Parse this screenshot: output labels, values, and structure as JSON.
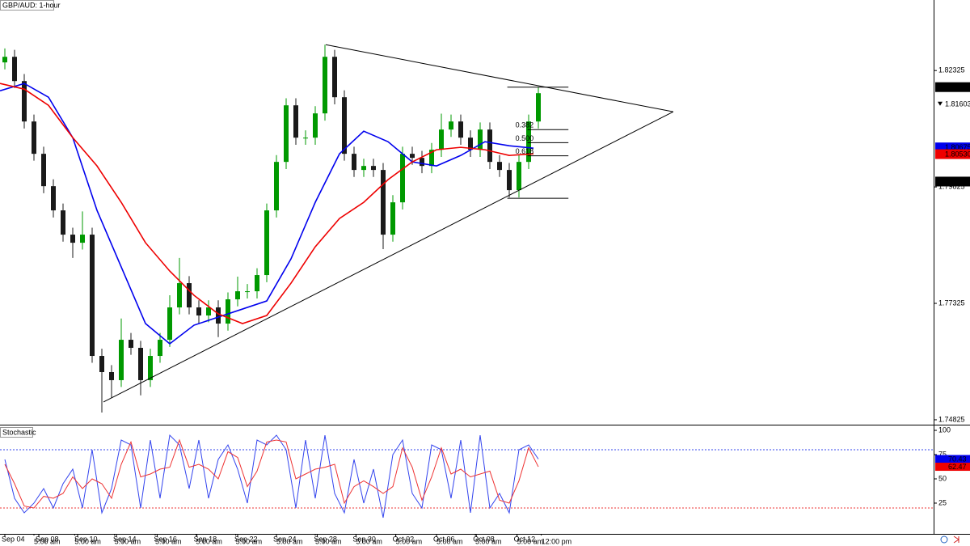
{
  "chart_data": [
    {
      "type": "candlestick",
      "title": "GBP/AUD: 1-hour",
      "open": [
        1.825,
        1.8262,
        1.82099,
        1.81231,
        1.80537,
        1.79842,
        1.79322,
        1.78801,
        1.78627,
        1.78801,
        1.76196,
        1.75849,
        1.75676,
        1.76543,
        1.7637,
        1.75676,
        1.76196,
        1.76543,
        1.77238,
        1.77759,
        1.77238,
        1.77065,
        1.77238,
        1.76891,
        1.77412,
        1.77585,
        1.77585,
        1.77933,
        1.79322,
        1.80363,
        1.81578,
        1.80884,
        1.80884,
        1.81405,
        1.8262,
        1.81752,
        1.80537,
        1.8019,
        1.80276,
        1.8019,
        1.78801,
        1.79495,
        1.80537,
        1.8045,
        1.80276,
        1.80624,
        1.81058,
        1.81231,
        1.80884,
        1.80624,
        1.81058,
        1.80363,
        1.8019,
        1.79756,
        1.80363,
        1.81231
      ],
      "high": [
        1.828,
        1.8277,
        1.8225,
        1.8138,
        1.8069,
        1.7999,
        1.7947,
        1.7895,
        1.793,
        1.7895,
        1.7635,
        1.76,
        1.77,
        1.7669,
        1.7652,
        1.7635,
        1.7669,
        1.775,
        1.783,
        1.7791,
        1.7739,
        1.7739,
        1.7739,
        1.7756,
        1.779,
        1.7774,
        1.7808,
        1.7947,
        1.8051,
        1.8173,
        1.8173,
        1.8104,
        1.8156,
        1.8288,
        1.8277,
        1.819,
        1.8069,
        1.8043,
        1.8043,
        1.8034,
        1.7965,
        1.8069,
        1.8069,
        1.806,
        1.8077,
        1.814,
        1.8138,
        1.8138,
        1.8104,
        1.8121,
        1.8121,
        1.8051,
        1.8034,
        1.8051,
        1.8138,
        1.8197
      ],
      "low": [
        1.8235,
        1.8195,
        1.8108,
        1.8039,
        1.7969,
        1.7917,
        1.7865,
        1.783,
        1.7848,
        1.7605,
        1.7498,
        1.753,
        1.7553,
        1.7622,
        1.7535,
        1.7553,
        1.7605,
        1.7639,
        1.7709,
        1.7709,
        1.769,
        1.7692,
        1.766,
        1.7674,
        1.7726,
        1.7743,
        1.7743,
        1.7778,
        1.7917,
        1.8021,
        1.8073,
        1.8073,
        1.8073,
        1.8125,
        1.816,
        1.8039,
        1.8004,
        1.8004,
        1.8004,
        1.7849,
        1.7865,
        1.7934,
        1.803,
        1.8012,
        1.8012,
        1.8047,
        1.809,
        1.8073,
        1.8047,
        1.8047,
        1.8021,
        1.8004,
        1.796,
        1.796,
        1.8021,
        1.8108
      ],
      "close": [
        1.8262,
        1.82099,
        1.81231,
        1.80537,
        1.79842,
        1.79322,
        1.78801,
        1.78627,
        1.78801,
        1.76196,
        1.75849,
        1.75676,
        1.76543,
        1.7637,
        1.75676,
        1.76196,
        1.76543,
        1.77238,
        1.77759,
        1.77238,
        1.77065,
        1.77238,
        1.76891,
        1.77412,
        1.77585,
        1.77585,
        1.77933,
        1.79322,
        1.80363,
        1.81578,
        1.80884,
        1.80884,
        1.81405,
        1.8262,
        1.81752,
        1.80537,
        1.8019,
        1.80276,
        1.8019,
        1.78801,
        1.79495,
        1.80537,
        1.8045,
        1.80276,
        1.80624,
        1.81058,
        1.81231,
        1.80884,
        1.80624,
        1.81058,
        1.80363,
        1.8019,
        1.79756,
        1.80363,
        1.81231,
        1.81839
      ],
      "up_color": "#009900",
      "down_color": "#1a1a1a",
      "xlim": [
        -0.5,
        95.75
      ],
      "xticks": [
        {
          "value": 0,
          "label": "Sep 04"
        },
        {
          "value": 3.5,
          "label": "Sep 08"
        },
        {
          "value": 7.5,
          "label": "Sep 10"
        },
        {
          "value": 11.5,
          "label": "Sep 14"
        },
        {
          "value": 15.7,
          "label": "Sep 16"
        },
        {
          "value": 19.8,
          "label": "Sep 18"
        },
        {
          "value": 24,
          "label": "Sep 22"
        },
        {
          "value": 28,
          "label": "Sep 24"
        },
        {
          "value": 32.2,
          "label": "Sep 28"
        },
        {
          "value": 36.2,
          "label": "Sep 30"
        },
        {
          "value": 40.3,
          "label": "Oct 02"
        },
        {
          "value": 44.5,
          "label": "Oct 06"
        },
        {
          "value": 48.6,
          "label": "Oct 08"
        },
        {
          "value": 52.8,
          "label": "Oct 12"
        }
      ],
      "xticks_time": [
        {
          "value": 3,
          "label": "5:00 am"
        },
        {
          "value": 7.2,
          "label": "5:00 am"
        },
        {
          "value": 11.3,
          "label": "5:00 am"
        },
        {
          "value": 15.5,
          "label": "5:00 am"
        },
        {
          "value": 19.7,
          "label": "5:00 am"
        },
        {
          "value": 23.8,
          "label": "5:00 am"
        },
        {
          "value": 28,
          "label": "5:00 am"
        },
        {
          "value": 32,
          "label": "5:00 am"
        },
        {
          "value": 36.2,
          "label": "5:00 am"
        },
        {
          "value": 40.3,
          "label": "5:00 am"
        },
        {
          "value": 44.5,
          "label": "5:00 am"
        },
        {
          "value": 48.5,
          "label": "5:00 am"
        },
        {
          "value": 52.8,
          "label": "5:00 am"
        },
        {
          "value": 55.3,
          "label": "12:00 pm"
        }
      ],
      "ylim": [
        1.7472,
        1.8384
      ],
      "yticks": [
        1.74825,
        1.77325,
        1.79825,
        1.82325
      ],
      "series": [
        {
          "color": "#0000ee",
          "x": [
            -0.5,
            2,
            4.5,
            7,
            9.5,
            12,
            14.5,
            17,
            19.5,
            22,
            24.5,
            27,
            29.5,
            32,
            34.5,
            37,
            39.5,
            42,
            44.5,
            47,
            49.5,
            52,
            54.5
          ],
          "values": [
            1.81891,
            1.82047,
            1.81752,
            1.80884,
            1.79322,
            1.78106,
            1.76891,
            1.76457,
            1.76856,
            1.7703,
            1.77203,
            1.77377,
            1.7828,
            1.79495,
            1.80537,
            1.81023,
            1.80797,
            1.80363,
            1.80276,
            1.80502,
            1.80797,
            1.8071,
            1.80658
          ]
        },
        {
          "color": "#ee0000",
          "x": [
            -0.5,
            2,
            4.5,
            7,
            9.5,
            12,
            14.5,
            17,
            19.5,
            22,
            24.5,
            27,
            29.5,
            32,
            34.5,
            37,
            39.5,
            42,
            44.5,
            47,
            49.5,
            52,
            54.5
          ],
          "values": [
            1.82047,
            1.81926,
            1.81578,
            1.80884,
            1.80276,
            1.79495,
            1.78627,
            1.78019,
            1.77498,
            1.77099,
            1.76891,
            1.77065,
            1.77759,
            1.7854,
            1.79148,
            1.79495,
            1.79981,
            1.80363,
            1.80624,
            1.80676,
            1.80624,
            1.80502,
            1.80537
          ]
        }
      ],
      "trendlines": [
        {
          "x": [
            33.08,
            68.9
          ],
          "values": [
            1.82881,
            1.8144
          ]
        },
        {
          "x": [
            10.17,
            68.9
          ],
          "values": [
            1.75207,
            1.8144
          ]
        }
      ],
      "fib": {
        "x": [
          51.8,
          58.1
        ],
        "high": 1.81969,
        "low": 1.79582,
        "levels": [
          0.382,
          {
            "value": 0.5,
            "label": "0.500"
          },
          0.618
        ]
      },
      "price_markers": [
        {
          "value": 1.81969,
          "color": "#000000"
        },
        {
          "value": 1.81603,
          "color": "#ffffff"
        },
        {
          "value": 1.80675,
          "color": "#0000ee"
        },
        {
          "value": 1.8053,
          "label": "1.80530",
          "color": "#ee0000"
        },
        {
          "value": 1.79941,
          "color": "#000000"
        }
      ]
    },
    {
      "type": "line",
      "title": "Stochastic",
      "series": [
        {
          "color": "#3344ee",
          "values": [
            70,
            30,
            15,
            25,
            40,
            20,
            45,
            60,
            20,
            80,
            15,
            40,
            90,
            85,
            20,
            90,
            30,
            95,
            85,
            40,
            90,
            30,
            70,
            85,
            60,
            25,
            90,
            85,
            95,
            80,
            20,
            90,
            30,
            95,
            35,
            15,
            70,
            25,
            60,
            10,
            75,
            90,
            35,
            20,
            85,
            80,
            30,
            90,
            15,
            95,
            20,
            35,
            15,
            80,
            85,
            70.43
          ]
        },
        {
          "color": "#ee3333",
          "values": [
            65,
            45,
            22,
            20,
            32,
            30,
            35,
            52,
            40,
            50,
            45,
            30,
            65,
            88,
            52,
            55,
            60,
            62,
            90,
            62,
            65,
            60,
            50,
            78,
            72,
            42,
            58,
            88,
            90,
            88,
            50,
            55,
            60,
            62,
            65,
            25,
            42,
            48,
            42,
            35,
            42,
            82,
            62,
            28,
            52,
            82,
            55,
            60,
            52,
            55,
            58,
            28,
            25,
            48,
            82,
            62.47
          ]
        }
      ],
      "ylim": [
        -6.7,
        104.2
      ],
      "yticks": [
        25,
        50,
        75,
        100
      ],
      "levels": [
        {
          "value": 80,
          "color": "#3344ee"
        },
        {
          "value": 20,
          "color": "#ee3333"
        }
      ],
      "markers": [
        {
          "value": 70.43,
          "color": "#0000ee"
        },
        {
          "value": 62.47,
          "color": "#ee0000"
        }
      ]
    }
  ]
}
